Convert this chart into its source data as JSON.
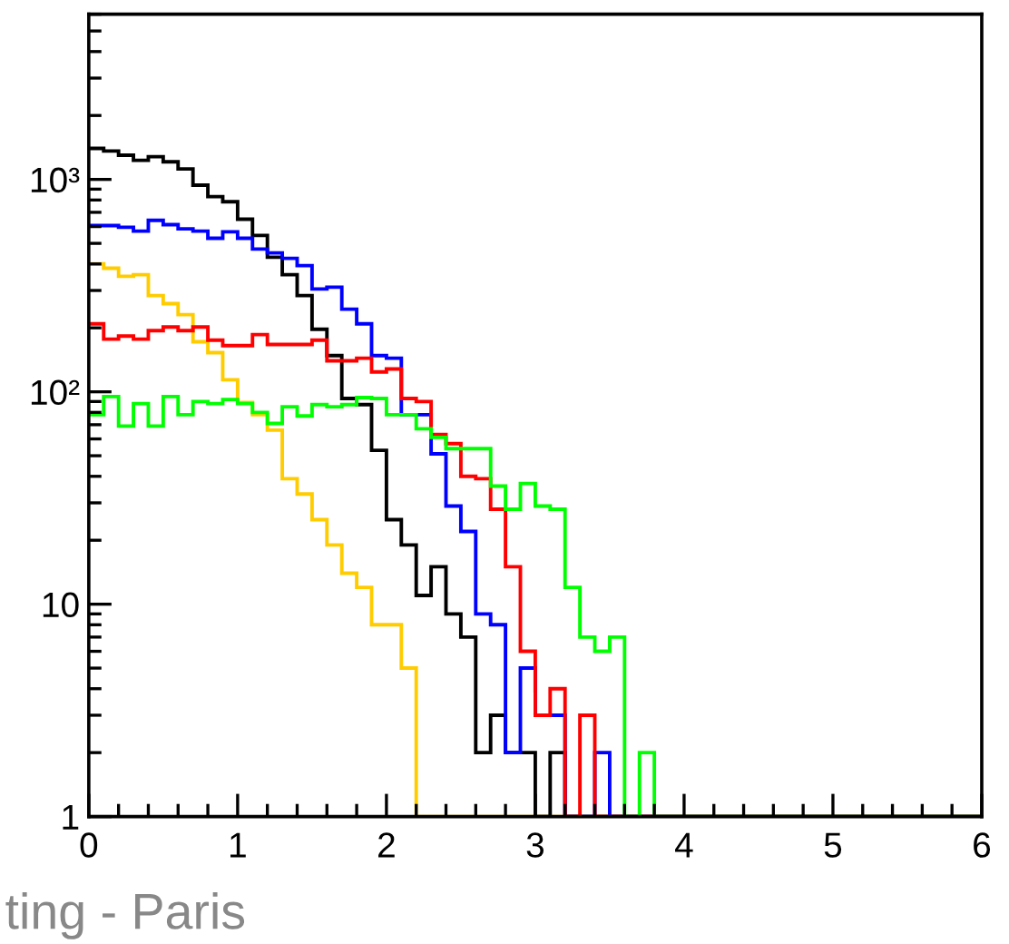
{
  "chart_data": {
    "type": "histogram",
    "bins": [
      0,
      0.1,
      0.2,
      0.3,
      0.4,
      0.5,
      0.6,
      0.7,
      0.8,
      0.9,
      1,
      1.1,
      1.2,
      1.3,
      1.4,
      1.5,
      1.6,
      1.7,
      1.8,
      1.9,
      2,
      2.1,
      2.2,
      2.3,
      2.4,
      2.5,
      2.6,
      2.7,
      2.8,
      2.9,
      3,
      3.1,
      3.2,
      3.3,
      3.4,
      3.5,
      3.6,
      3.7,
      3.8,
      3.9,
      4,
      4.1,
      4.2,
      4.3,
      4.4,
      4.5,
      4.6,
      4.7,
      4.8,
      4.9,
      5,
      5.1,
      5.2,
      5.3,
      5.4,
      5.5,
      5.6,
      5.7,
      5.8,
      5.9,
      6
    ],
    "series": [
      {
        "color": "#ffcc00",
        "values": [
          400,
          382,
          350,
          356,
          284,
          260,
          231,
          172,
          153,
          114,
          89,
          78,
          66,
          39,
          33,
          25,
          19,
          14,
          12,
          8,
          8,
          5,
          1,
          1,
          1,
          1,
          1,
          1,
          1,
          1,
          1,
          1,
          1,
          1,
          1,
          1,
          1,
          1,
          1,
          1,
          1,
          1,
          1,
          1,
          1,
          1,
          1,
          1,
          1,
          1,
          1,
          1,
          1,
          1,
          1,
          1,
          1,
          1,
          1,
          1
        ]
      },
      {
        "color": "#000000",
        "values": [
          1400,
          1360,
          1300,
          1230,
          1280,
          1210,
          1120,
          940,
          830,
          785,
          650,
          545,
          430,
          356,
          284,
          197,
          148,
          93,
          87,
          53,
          25,
          19,
          11,
          15,
          9,
          7,
          2,
          3,
          2,
          2,
          1,
          2,
          1,
          1,
          1,
          1,
          1,
          1,
          1,
          1,
          1,
          1,
          1,
          1,
          1,
          1,
          1,
          1,
          1,
          1,
          1,
          1,
          1,
          1,
          1,
          1,
          1,
          1,
          1,
          1
        ]
      },
      {
        "color": "#0000ff",
        "values": [
          606,
          606,
          595,
          571,
          642,
          612,
          585,
          571,
          528,
          567,
          528,
          470,
          451,
          425,
          393,
          305,
          311,
          245,
          209,
          148,
          144,
          78,
          78,
          51,
          29,
          22,
          9,
          8,
          2,
          5,
          3,
          3,
          1,
          1,
          2,
          1,
          1,
          1,
          1,
          1,
          1,
          1,
          1,
          1,
          1,
          1,
          1,
          1,
          1,
          1,
          1,
          1,
          1,
          1,
          1,
          1,
          1,
          1,
          1,
          1
        ]
      },
      {
        "color": "#ff0000",
        "values": [
          209,
          177,
          183,
          177,
          194,
          202,
          194,
          202,
          175,
          165,
          165,
          186,
          167,
          167,
          167,
          175,
          140,
          140,
          144,
          124,
          128,
          93,
          90,
          63,
          57,
          40,
          39,
          28,
          15,
          6,
          3,
          4,
          1,
          3,
          1,
          1,
          1,
          1,
          1,
          1,
          1,
          1,
          1,
          1,
          1,
          1,
          1,
          1,
          1,
          1,
          1,
          1,
          1,
          1,
          1,
          1,
          1,
          1,
          1,
          1
        ]
      },
      {
        "color": "#00ff00",
        "values": [
          78,
          95,
          69,
          88,
          69,
          95,
          78,
          90,
          88,
          92,
          88,
          80,
          71,
          85,
          77,
          87,
          85,
          87,
          94,
          93,
          78,
          78,
          67,
          61,
          54,
          54,
          54,
          36,
          28,
          37,
          29,
          28,
          12,
          7,
          6,
          7,
          1,
          2,
          1,
          1,
          1,
          1,
          1,
          1,
          1,
          1,
          1,
          1,
          1,
          1,
          1,
          1,
          1,
          1,
          1,
          1,
          1,
          1,
          1,
          1
        ]
      }
    ],
    "log": "y",
    "xlim": [
      0,
      6
    ],
    "xticks": [
      0,
      1,
      2,
      3,
      4,
      5,
      6
    ],
    "ylim": [
      1,
      6000
    ],
    "yticks": [
      1,
      10,
      {
        "value": 100,
        "label": "10²"
      },
      {
        "value": 1000,
        "label": "10³"
      }
    ],
    "grid": false,
    "annotations": [
      "ting - Paris"
    ]
  }
}
